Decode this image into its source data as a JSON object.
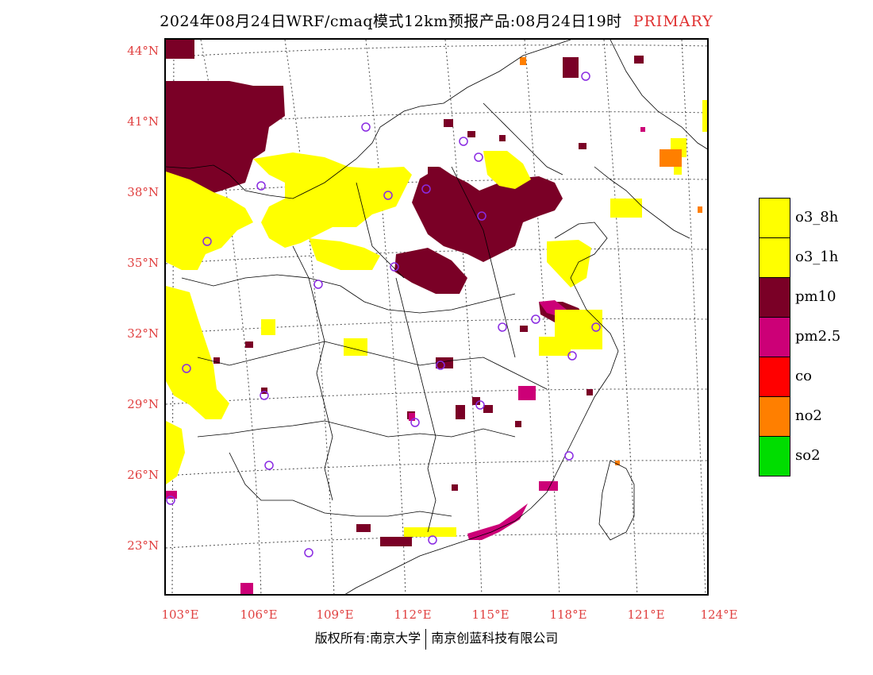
{
  "header": {
    "title": "2024年08月24日WRF/cmaq模式12km预报产品:08月24日19时",
    "primary_tag": "PRIMARY"
  },
  "axes": {
    "lat_labels": [
      "44°N",
      "41°N",
      "38°N",
      "35°N",
      "32°N",
      "29°N",
      "26°N",
      "23°N"
    ],
    "lon_labels": [
      "103°E",
      "106°E",
      "109°E",
      "112°E",
      "115°E",
      "118°E",
      "121°E",
      "124°E"
    ]
  },
  "legend": [
    {
      "label": "o3_8h",
      "color": "#ffff00"
    },
    {
      "label": "o3_1h",
      "color": "#ffff00"
    },
    {
      "label": "pm10",
      "color": "#7a0026"
    },
    {
      "label": "pm2.5",
      "color": "#cc0077"
    },
    {
      "label": "co",
      "color": "#ff0000"
    },
    {
      "label": "no2",
      "color": "#ff7f00"
    },
    {
      "label": "so2",
      "color": "#00dd00"
    }
  ],
  "footer": {
    "left": "版权所有:南京大学",
    "right": "南京创蓝科技有限公司"
  }
}
